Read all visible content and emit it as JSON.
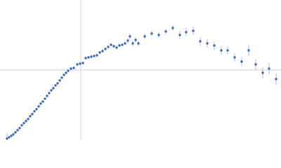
{
  "chart_data": {
    "type": "scatter",
    "x": [
      10,
      13,
      16,
      19,
      22,
      25,
      28,
      31,
      34,
      37,
      40,
      43,
      46,
      49,
      52,
      55,
      58,
      61,
      64,
      67,
      70,
      73,
      76,
      79,
      82,
      85,
      88,
      91,
      94,
      97,
      101,
      105,
      110,
      114,
      118,
      122,
      126,
      130,
      134,
      138,
      142,
      146,
      150,
      154,
      158,
      162,
      166,
      170,
      174,
      178,
      182,
      185,
      189,
      193,
      197,
      206,
      216,
      226,
      236,
      246,
      256,
      265,
      275,
      285,
      295,
      305,
      315,
      324,
      334,
      344,
      354,
      364,
      374,
      383,
      393
    ],
    "y": [
      2,
      4,
      6,
      8,
      11,
      14,
      17,
      21,
      24,
      27,
      30,
      34,
      37,
      41,
      44,
      48,
      52,
      55,
      59,
      63,
      67,
      71,
      74,
      78,
      81,
      85,
      89,
      93,
      96,
      99,
      102,
      103,
      108,
      109,
      110,
      117,
      118,
      119,
      120,
      121,
      125,
      127,
      130,
      133,
      136,
      134,
      132,
      135,
      136,
      138,
      142,
      148,
      138,
      143,
      138,
      148,
      152,
      150,
      155,
      160,
      150,
      154,
      156,
      141,
      138,
      135,
      128,
      128,
      118,
      112,
      128,
      108,
      96,
      102,
      87
    ],
    "errors": [
      8,
      1,
      1,
      1,
      1,
      1,
      1,
      1,
      1,
      1,
      1,
      1,
      1,
      1,
      1,
      1,
      1,
      1,
      1,
      1,
      1,
      1,
      1,
      1,
      1,
      1,
      1,
      1,
      1,
      1,
      2,
      2,
      2,
      2,
      2,
      2,
      2,
      2,
      2,
      2,
      2,
      2,
      2,
      2,
      2,
      2,
      2,
      2,
      2,
      2,
      4,
      4,
      4,
      4,
      4,
      4,
      4,
      4,
      4,
      4,
      6,
      6,
      6,
      6,
      6,
      6,
      6,
      6,
      6,
      6,
      8,
      8,
      8,
      8,
      8
    ],
    "xlim": [
      0,
      400
    ],
    "ylim": [
      0,
      200
    ],
    "crosshair": {
      "x": 115,
      "y": 100
    },
    "color": "#3f6db5",
    "error_color": "#aac0e2",
    "crosshair_color": "#c8d0da"
  }
}
